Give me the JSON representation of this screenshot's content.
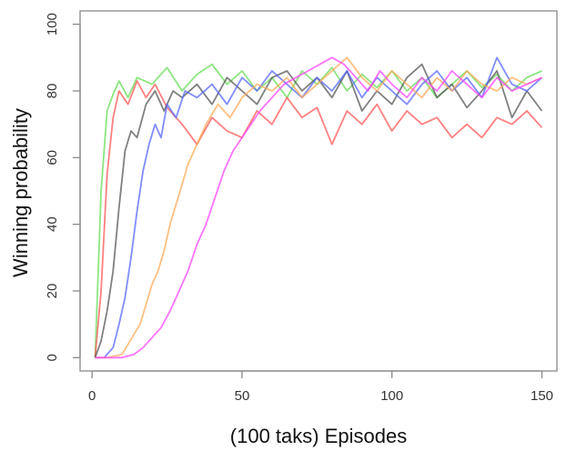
{
  "chart_data": {
    "type": "line",
    "xlabel": "(100 taks) Episodes",
    "ylabel": "Winning probability",
    "xlim": [
      -4,
      155
    ],
    "ylim": [
      -4,
      104
    ],
    "xticks": [
      0,
      50,
      100,
      150
    ],
    "yticks": [
      0,
      20,
      40,
      60,
      80,
      100
    ],
    "grid": false,
    "legend": "none",
    "series": [
      {
        "color": "#66dd55",
        "x": [
          1,
          3,
          5,
          7,
          9,
          12,
          15,
          20,
          25,
          30,
          35,
          40,
          45,
          50,
          55,
          60,
          65,
          70,
          75,
          80,
          85,
          90,
          95,
          100,
          105,
          110,
          115,
          120,
          125,
          130,
          135,
          140,
          145,
          150
        ],
        "y": [
          0,
          50,
          74,
          79,
          83,
          78,
          84,
          82,
          87,
          80,
          85,
          88,
          82,
          86,
          80,
          84,
          78,
          86,
          82,
          87,
          80,
          85,
          81,
          86,
          80,
          84,
          78,
          82,
          86,
          81,
          85,
          80,
          84,
          86
        ]
      },
      {
        "color": "#ff5555",
        "x": [
          1,
          3,
          5,
          7,
          9,
          12,
          15,
          18,
          21,
          25,
          30,
          35,
          40,
          45,
          50,
          55,
          60,
          65,
          70,
          75,
          80,
          85,
          90,
          95,
          100,
          105,
          110,
          115,
          120,
          125,
          130,
          135,
          140,
          145,
          150
        ],
        "y": [
          0,
          20,
          55,
          72,
          80,
          76,
          83,
          78,
          82,
          75,
          70,
          64,
          72,
          68,
          66,
          74,
          70,
          78,
          72,
          75,
          64,
          74,
          70,
          76,
          68,
          74,
          70,
          72,
          66,
          70,
          66,
          72,
          70,
          74,
          69
        ]
      },
      {
        "color": "#555555",
        "x": [
          1,
          3,
          5,
          7,
          9,
          11,
          13,
          15,
          18,
          21,
          24,
          27,
          30,
          35,
          40,
          45,
          50,
          55,
          60,
          65,
          70,
          75,
          80,
          85,
          90,
          95,
          100,
          105,
          110,
          115,
          120,
          125,
          130,
          135,
          140,
          145,
          150
        ],
        "y": [
          0,
          5,
          14,
          26,
          45,
          62,
          68,
          66,
          76,
          80,
          74,
          80,
          78,
          82,
          76,
          84,
          80,
          76,
          84,
          86,
          80,
          84,
          78,
          86,
          74,
          80,
          76,
          84,
          88,
          78,
          82,
          75,
          80,
          86,
          72,
          80,
          74
        ]
      },
      {
        "color": "#5566ff",
        "x": [
          1,
          4,
          7,
          9,
          11,
          13,
          15,
          17,
          19,
          21,
          23,
          25,
          28,
          31,
          35,
          40,
          45,
          50,
          55,
          60,
          65,
          70,
          75,
          80,
          85,
          90,
          95,
          100,
          105,
          110,
          115,
          120,
          125,
          130,
          135,
          140,
          145,
          150
        ],
        "y": [
          0,
          0,
          3,
          10,
          18,
          30,
          44,
          56,
          64,
          70,
          66,
          76,
          72,
          80,
          78,
          82,
          76,
          84,
          80,
          86,
          82,
          78,
          84,
          80,
          86,
          78,
          84,
          80,
          76,
          82,
          86,
          80,
          84,
          78,
          90,
          82,
          80,
          84
        ]
      },
      {
        "color": "#ffaa55",
        "x": [
          1,
          5,
          10,
          12,
          14,
          16,
          18,
          20,
          22,
          24,
          26,
          28,
          30,
          32,
          35,
          38,
          42,
          46,
          50,
          55,
          60,
          65,
          70,
          75,
          80,
          85,
          90,
          95,
          100,
          105,
          110,
          115,
          120,
          125,
          130,
          135,
          140,
          145,
          150
        ],
        "y": [
          0,
          0,
          1,
          4,
          7,
          10,
          16,
          22,
          26,
          32,
          40,
          46,
          52,
          58,
          64,
          70,
          76,
          72,
          78,
          82,
          80,
          84,
          78,
          82,
          86,
          90,
          84,
          80,
          86,
          82,
          78,
          84,
          80,
          86,
          82,
          80,
          84,
          82,
          84
        ]
      },
      {
        "color": "#ff44ff",
        "x": [
          1,
          10,
          14,
          17,
          20,
          23,
          26,
          29,
          32,
          35,
          38,
          41,
          44,
          47,
          50,
          53,
          56,
          60,
          64,
          68,
          72,
          76,
          80,
          84,
          88,
          92,
          96,
          100,
          105,
          110,
          115,
          120,
          125,
          130,
          135,
          140,
          145,
          150
        ],
        "y": [
          0,
          0,
          1,
          3,
          6,
          9,
          14,
          20,
          26,
          34,
          40,
          48,
          56,
          62,
          66,
          70,
          74,
          78,
          82,
          84,
          86,
          88,
          90,
          88,
          84,
          80,
          86,
          82,
          78,
          84,
          80,
          86,
          82,
          78,
          84,
          80,
          82,
          84
        ]
      }
    ]
  }
}
